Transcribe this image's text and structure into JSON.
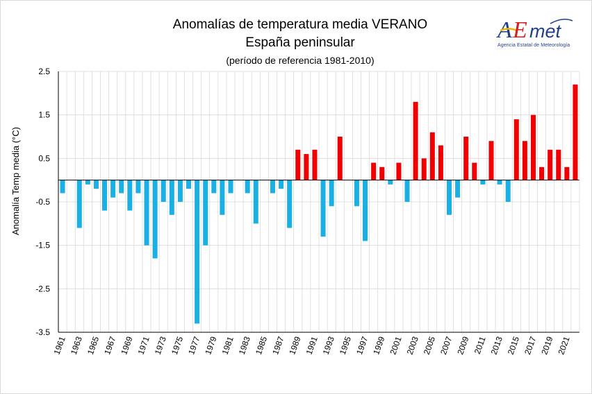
{
  "titles": {
    "line1": "Anomalías de temperatura media VERANO",
    "line2": "España peninsular",
    "line3": "(período de referencia 1981-2010)"
  },
  "logo": {
    "wordmark": "AEmet",
    "subtitle": "Agencia Estatal de Meteorología"
  },
  "colors": {
    "negative": "#1ab0e4",
    "positive": "#f00000",
    "grid": "#d9d9d9",
    "axis": "#000000"
  },
  "chart_data": {
    "type": "bar",
    "title": "Anomalías de temperatura media VERANO",
    "subtitle": "España peninsular (período de referencia 1981-2010)",
    "xlabel": "",
    "ylabel": "Anomalía Temp media (°C)",
    "ylim": [
      -3.5,
      2.5
    ],
    "yticks": [
      2.5,
      1.5,
      0.5,
      -0.5,
      -1.5,
      -2.5,
      -3.5
    ],
    "ytick_labels": [
      "2.5",
      "1.5",
      "0.5",
      "-0.5",
      "-1.5",
      "-2.5",
      "-3.5"
    ],
    "x_tick_labels": [
      "1961",
      "1963",
      "1965",
      "1967",
      "1969",
      "1971",
      "1973",
      "1975",
      "1977",
      "1979",
      "1981",
      "1983",
      "1985",
      "1987",
      "1989",
      "1991",
      "1993",
      "1995",
      "1997",
      "1999",
      "2001",
      "2003",
      "2005",
      "2007",
      "2009",
      "2011",
      "2013",
      "2015",
      "2017",
      "2019",
      "2021"
    ],
    "grid": true,
    "color_rule": "negative blue, positive red",
    "categories": [
      "1961",
      "1962",
      "1963",
      "1964",
      "1965",
      "1966",
      "1967",
      "1968",
      "1969",
      "1970",
      "1971",
      "1972",
      "1973",
      "1974",
      "1975",
      "1976",
      "1977",
      "1978",
      "1979",
      "1980",
      "1981",
      "1982",
      "1983",
      "1984",
      "1985",
      "1986",
      "1987",
      "1988",
      "1989",
      "1990",
      "1991",
      "1992",
      "1993",
      "1994",
      "1995",
      "1996",
      "1997",
      "1998",
      "1999",
      "2000",
      "2001",
      "2002",
      "2003",
      "2004",
      "2005",
      "2006",
      "2007",
      "2008",
      "2009",
      "2010",
      "2011",
      "2012",
      "2013",
      "2014",
      "2015",
      "2016",
      "2017",
      "2018",
      "2019",
      "2020",
      "2021",
      "2022"
    ],
    "values": [
      -0.3,
      0.0,
      -1.1,
      -0.1,
      -0.2,
      -0.7,
      -0.4,
      -0.3,
      -0.7,
      -0.3,
      -1.5,
      -1.8,
      -0.5,
      -0.8,
      -0.5,
      -0.2,
      -3.3,
      -1.5,
      -0.3,
      -0.8,
      -0.3,
      0.0,
      -0.3,
      -1.0,
      0.0,
      -0.3,
      -0.2,
      -1.1,
      0.7,
      0.6,
      0.7,
      -1.3,
      -0.6,
      1.0,
      0.0,
      -0.6,
      -1.4,
      0.4,
      0.3,
      -0.1,
      0.4,
      -0.5,
      1.8,
      0.5,
      1.1,
      0.8,
      -0.8,
      -0.4,
      1.0,
      0.4,
      -0.1,
      0.9,
      -0.1,
      -0.5,
      1.4,
      0.9,
      1.5,
      0.3,
      0.7,
      0.7,
      0.3,
      2.2
    ]
  }
}
